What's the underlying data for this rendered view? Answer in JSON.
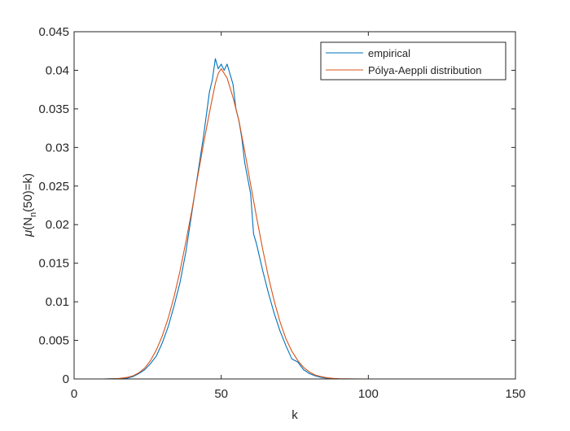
{
  "chart_data": {
    "type": "line",
    "title": "",
    "xlabel": "k",
    "ylabel": "μ(N_n(50)=k)",
    "ylabel_parts": {
      "mu": "μ",
      "base": "(N",
      "sub": "n",
      "rest": "(50)=k)"
    },
    "xlim": [
      0,
      150
    ],
    "ylim": [
      0,
      0.045
    ],
    "xticks": [
      0,
      50,
      100,
      150
    ],
    "yticks": [
      0,
      0.005,
      0.01,
      0.015,
      0.02,
      0.025,
      0.03,
      0.035,
      0.04,
      0.045
    ],
    "xtick_labels": [
      "0",
      "50",
      "100",
      "150"
    ],
    "ytick_labels": [
      "0",
      "0.005",
      "0.01",
      "0.015",
      "0.02",
      "0.025",
      "0.03",
      "0.035",
      "0.04",
      "0.045"
    ],
    "grid": false,
    "legend_position": "top-right",
    "series": [
      {
        "name": "empirical",
        "color": "#0072BD",
        "x": [
          0,
          10,
          15,
          18,
          20,
          22,
          24,
          26,
          28,
          30,
          32,
          34,
          36,
          38,
          40,
          42,
          44,
          46,
          47,
          48,
          49,
          50,
          51,
          52,
          53,
          54,
          55,
          56,
          57,
          58,
          60,
          61,
          62,
          64,
          66,
          68,
          70,
          72,
          74,
          76,
          78,
          80,
          82,
          84,
          86,
          88,
          90,
          95,
          100,
          150
        ],
        "y": [
          0,
          0,
          5e-05,
          0.0001,
          0.0003,
          0.0007,
          0.0012,
          0.002,
          0.003,
          0.0047,
          0.0068,
          0.0095,
          0.0125,
          0.0165,
          0.0215,
          0.0265,
          0.0315,
          0.0372,
          0.0388,
          0.0415,
          0.0402,
          0.0408,
          0.04,
          0.0408,
          0.0395,
          0.0382,
          0.035,
          0.0335,
          0.0312,
          0.028,
          0.024,
          0.0188,
          0.0175,
          0.0142,
          0.0112,
          0.0085,
          0.0062,
          0.0043,
          0.0026,
          0.0022,
          0.0012,
          0.0007,
          0.0004,
          0.0002,
          0.0001,
          5e-05,
          0,
          0,
          0,
          0
        ]
      },
      {
        "name": "Pólya-Aeppli distribution",
        "color": "#D95319",
        "x": [
          0,
          10,
          15,
          18,
          20,
          22,
          24,
          26,
          28,
          30,
          32,
          34,
          36,
          38,
          40,
          42,
          44,
          46,
          48,
          49,
          50,
          52,
          54,
          56,
          58,
          60,
          62,
          64,
          66,
          68,
          70,
          72,
          74,
          76,
          78,
          80,
          82,
          84,
          86,
          88,
          90,
          95,
          100,
          150
        ],
        "y": [
          0,
          0,
          5e-05,
          0.0002,
          0.0004,
          0.0008,
          0.0014,
          0.0024,
          0.0038,
          0.0056,
          0.0079,
          0.0107,
          0.014,
          0.0178,
          0.0218,
          0.0262,
          0.0305,
          0.0345,
          0.0383,
          0.0396,
          0.0402,
          0.039,
          0.0365,
          0.0335,
          0.0295,
          0.0252,
          0.021,
          0.017,
          0.0133,
          0.0101,
          0.0074,
          0.0052,
          0.0036,
          0.0024,
          0.0015,
          0.0009,
          0.0005,
          0.0003,
          0.00015,
          8e-05,
          4e-05,
          1e-05,
          0,
          0
        ]
      }
    ]
  }
}
